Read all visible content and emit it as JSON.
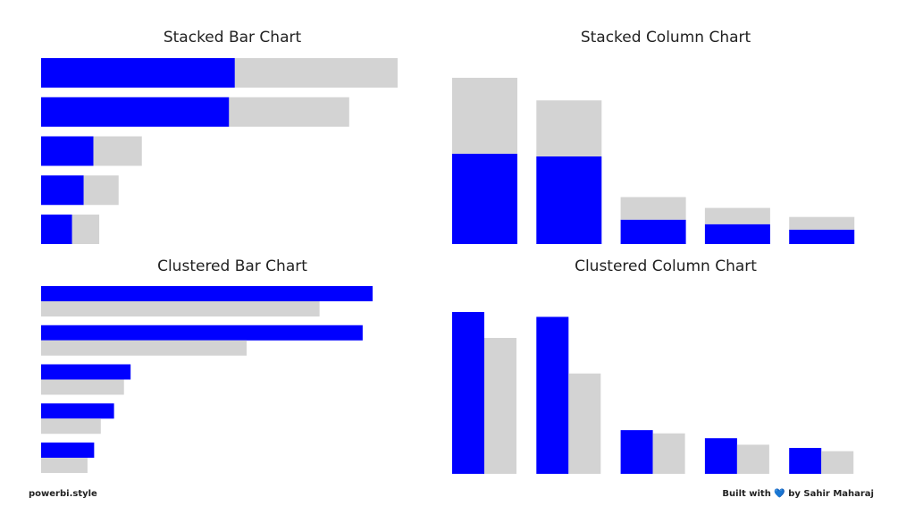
{
  "chart_data": [
    {
      "type": "bar",
      "orientation": "horizontal",
      "stacked": true,
      "title": "Stacked Bar Chart",
      "series": [
        {
          "color": "#0000ff",
          "values": [
            100,
            97,
            27,
            22,
            16
          ]
        },
        {
          "color": "#d3d3d3",
          "values": [
            84,
            62,
            25,
            18,
            14
          ]
        }
      ]
    },
    {
      "type": "bar",
      "orientation": "vertical",
      "stacked": true,
      "title": "Stacked Column Chart",
      "series": [
        {
          "color": "#0000ff",
          "values": [
            100,
            97,
            27,
            22,
            16
          ]
        },
        {
          "color": "#d3d3d3",
          "values": [
            84,
            62,
            25,
            18,
            14
          ]
        }
      ]
    },
    {
      "type": "bar",
      "orientation": "horizontal",
      "stacked": false,
      "title": "Clustered Bar Chart",
      "series": [
        {
          "color": "#0000ff",
          "values": [
            100,
            97,
            27,
            22,
            16
          ]
        },
        {
          "color": "#d3d3d3",
          "values": [
            84,
            62,
            25,
            18,
            14
          ]
        }
      ]
    },
    {
      "type": "bar",
      "orientation": "vertical",
      "stacked": false,
      "title": "Clustered Column Chart",
      "series": [
        {
          "color": "#0000ff",
          "values": [
            100,
            97,
            27,
            22,
            16
          ]
        },
        {
          "color": "#d3d3d3",
          "values": [
            84,
            62,
            25,
            18,
            14
          ]
        }
      ]
    }
  ],
  "footer": {
    "left": "powerbi.style",
    "right": "Built with 💙 by Sahir Maharaj"
  }
}
